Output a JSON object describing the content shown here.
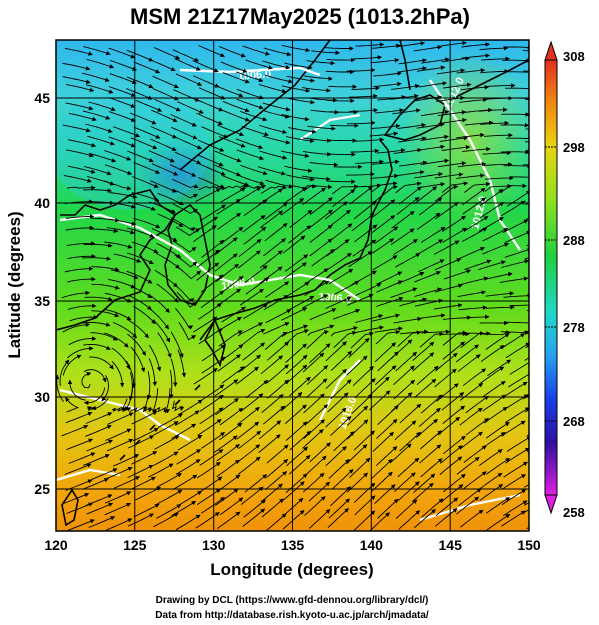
{
  "title": "MSM 21Z17May2025 (1013.2hPa)",
  "xlabel": "Longitude (degrees)",
  "ylabel": "Latitude  (degrees)",
  "x_ticks": [
    "120",
    "125",
    "130",
    "135",
    "140",
    "145",
    "150"
  ],
  "y_ticks": [
    "25",
    "30",
    "35",
    "40",
    "45"
  ],
  "colorbar": {
    "ticks": [
      "308",
      "298",
      "288",
      "278",
      "268",
      "258"
    ],
    "min": 258,
    "max": 308
  },
  "contour_labels": [
    "1006.0",
    "1006.0",
    "1006.0",
    "1016.0",
    "1012.0",
    "1012.0"
  ],
  "credits": {
    "line1": "Drawing by DCL (https://www.gfd-dennou.org/library/dcl/)",
    "line2": "Data from http://database.rish.kyoto-u.ac.jp/arch/jmadata/"
  },
  "chart_data": {
    "type": "heatmap",
    "title": "MSM 21Z17May2025 (1013.2hPa)",
    "xlabel": "Longitude (degrees)",
    "ylabel": "Latitude  (degrees)",
    "xlim": [
      120,
      150
    ],
    "ylim": [
      22.5,
      47.6
    ],
    "colorbar_range": [
      258,
      308
    ],
    "fields": [
      "temperature (shaded)",
      "wind streamlines",
      "pressure contours (white)"
    ]
  }
}
